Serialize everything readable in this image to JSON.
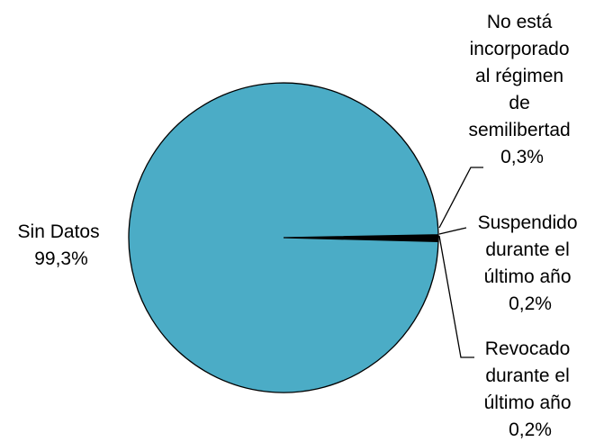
{
  "chart_data": {
    "type": "pie",
    "title": "",
    "slices": [
      {
        "label_lines": [
          "Sin Datos",
          "99,3%"
        ],
        "label": "Sin Datos",
        "value": 99.3,
        "value_label": "99,3%",
        "color": "#4bacc6"
      },
      {
        "label_lines": [
          "No está",
          "incorporado",
          "al régimen",
          "de",
          "semilibertad",
          "0,3%"
        ],
        "label": "No está incorporado al régimen de semilibertad",
        "value": 0.3,
        "value_label": "0,3%",
        "color": "#000000"
      },
      {
        "label_lines": [
          "Suspendido",
          "durante el",
          "último año",
          "0,2%"
        ],
        "label": "Suspendido durante el último año",
        "value": 0.2,
        "value_label": "0,2%",
        "color": "#000000"
      },
      {
        "label_lines": [
          "Revocado",
          "durante el",
          "último año",
          "0,2%"
        ],
        "label": "Revocado durante el último año",
        "value": 0.2,
        "value_label": "0,2%",
        "color": "#000000"
      }
    ],
    "legend": "none",
    "colors": {
      "main": "#4bacc6",
      "minor": "#000000",
      "outline": "#000000"
    }
  }
}
